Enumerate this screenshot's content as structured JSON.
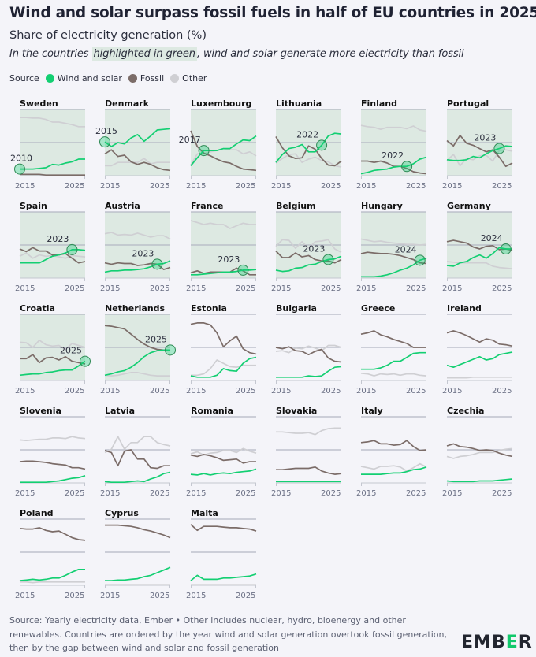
{
  "header": {
    "title": "Wind and solar surpass fossil fuels in half of EU countries in 2025",
    "subtitle": "Share of electricity generation (%)",
    "desc_before": "In the countries ",
    "desc_highlight": "highlighted in green",
    "desc_after": ", wind and solar generate more electricity than fossil"
  },
  "legend": {
    "label": "Source",
    "items": [
      {
        "name": "Wind and solar",
        "color": "#13cf72"
      },
      {
        "name": "Fossil",
        "color": "#7b6c68"
      },
      {
        "name": "Other",
        "color": "#cfcfd3"
      }
    ]
  },
  "footer": {
    "source": "Source: Yearly electricity data, Ember • Other includes nuclear, hydro, bioenergy and other renewables. Countries are ordered by the year wind and solar generation overtook fossil generation, then by the gap between wind and solar and fossil generation",
    "logo": "EMBER"
  },
  "chart_data": {
    "type": "line",
    "title": "Wind and solar surpass fossil fuels in half of EU countries in 2025",
    "ylabel": "Share of electricity generation (%)",
    "x": [
      2015,
      2016,
      2017,
      2018,
      2019,
      2020,
      2021,
      2022,
      2023,
      2024,
      2025
    ],
    "xticks": [
      "2015",
      "2025"
    ],
    "ylim": [
      0,
      100
    ],
    "gridlines": [
      50,
      100
    ],
    "colors": {
      "wind_solar": "#13cf72",
      "fossil": "#7b6c68",
      "other": "#cfcfd3",
      "highlight": "#dde9e2",
      "marker": "#2f8a55"
    },
    "panels": [
      {
        "country": "Sweden",
        "highlighted": true,
        "crossover": "2010",
        "wind_solar": [
          10,
          10,
          10,
          11,
          12,
          17,
          16,
          19,
          21,
          25,
          25
        ],
        "fossil": [
          2,
          2,
          2,
          2,
          1,
          1,
          1,
          1,
          1,
          1,
          1
        ],
        "other": [
          88,
          88,
          87,
          87,
          85,
          81,
          81,
          79,
          77,
          74,
          74
        ]
      },
      {
        "country": "Denmark",
        "highlighted": true,
        "crossover": "2015",
        "wind_solar": [
          51,
          44,
          50,
          48,
          57,
          62,
          52,
          60,
          69,
          70,
          71
        ],
        "fossil": [
          33,
          39,
          29,
          31,
          21,
          17,
          20,
          17,
          12,
          9,
          8
        ],
        "other": [
          15,
          15,
          20,
          20,
          20,
          20,
          26,
          18,
          20,
          20,
          20
        ]
      },
      {
        "country": "Luxembourg",
        "highlighted": true,
        "crossover": "2017",
        "wind_solar": [
          15,
          27,
          38,
          38,
          38,
          41,
          41,
          48,
          54,
          53,
          60
        ],
        "fossil": [
          68,
          44,
          34,
          30,
          25,
          21,
          19,
          14,
          10,
          9,
          8
        ],
        "other": [
          16,
          33,
          33,
          36,
          38,
          41,
          39,
          39,
          33,
          36,
          30
        ]
      },
      {
        "country": "Lithuania",
        "highlighted": true,
        "crossover": "2022",
        "wind_solar": [
          20,
          32,
          41,
          43,
          47,
          36,
          36,
          46,
          60,
          64,
          63
        ],
        "fossil": [
          59,
          42,
          30,
          26,
          27,
          45,
          40,
          26,
          16,
          15,
          22
        ],
        "other": [
          19,
          26,
          32,
          33,
          20,
          25,
          28,
          23,
          21,
          15,
          13
        ]
      },
      {
        "country": "Finland",
        "highlighted": true,
        "crossover": "2022",
        "wind_solar": [
          3,
          5,
          8,
          9,
          10,
          13,
          14,
          14,
          18,
          25,
          28
        ],
        "fossil": [
          22,
          22,
          20,
          22,
          19,
          14,
          14,
          11,
          6,
          4,
          3
        ],
        "other": [
          76,
          74,
          73,
          70,
          73,
          73,
          73,
          71,
          75,
          69,
          67
        ]
      },
      {
        "country": "Portugal",
        "highlighted": true,
        "crossover": "2023",
        "wind_solar": [
          24,
          23,
          23,
          24,
          29,
          27,
          33,
          38,
          41,
          45,
          44
        ],
        "fossil": [
          53,
          45,
          61,
          49,
          46,
          41,
          36,
          39,
          28,
          14,
          19
        ],
        "other": [
          23,
          32,
          15,
          26,
          24,
          30,
          31,
          22,
          38,
          39,
          37
        ]
      },
      {
        "country": "Spain",
        "highlighted": true,
        "crossover": "2023",
        "wind_solar": [
          23,
          23,
          23,
          23,
          28,
          33,
          35,
          38,
          43,
          43,
          42
        ],
        "fossil": [
          44,
          40,
          46,
          41,
          41,
          35,
          35,
          37,
          30,
          23,
          25
        ],
        "other": [
          33,
          38,
          30,
          35,
          33,
          34,
          32,
          30,
          34,
          33,
          32
        ]
      },
      {
        "country": "Austria",
        "highlighted": true,
        "crossover": "2023",
        "wind_solar": [
          9,
          11,
          11,
          12,
          12,
          13,
          14,
          17,
          21,
          22,
          26
        ],
        "fossil": [
          23,
          21,
          23,
          22,
          22,
          19,
          20,
          22,
          21,
          13,
          16
        ],
        "other": [
          67,
          69,
          65,
          66,
          65,
          68,
          65,
          62,
          64,
          64,
          59
        ]
      },
      {
        "country": "France",
        "highlighted": true,
        "crossover": "2023",
        "wind_solar": [
          5,
          5,
          6,
          7,
          8,
          9,
          9,
          10,
          12,
          12,
          13
        ],
        "fossil": [
          8,
          11,
          7,
          9,
          9,
          9,
          9,
          15,
          11,
          5,
          5
        ],
        "other": [
          87,
          84,
          81,
          83,
          81,
          81,
          75,
          79,
          83,
          81,
          81
        ]
      },
      {
        "country": "Belgium",
        "highlighted": true,
        "crossover": "2023",
        "wind_solar": [
          12,
          10,
          11,
          15,
          16,
          20,
          21,
          25,
          28,
          29,
          33
        ],
        "fossil": [
          41,
          31,
          31,
          38,
          32,
          34,
          28,
          26,
          26,
          23,
          28
        ],
        "other": [
          48,
          58,
          57,
          45,
          55,
          45,
          55,
          56,
          58,
          44,
          39
        ]
      },
      {
        "country": "Hungary",
        "highlighted": true,
        "crossover": "2024",
        "wind_solar": [
          2,
          2,
          2,
          3,
          5,
          8,
          12,
          15,
          20,
          27,
          30
        ],
        "fossil": [
          37,
          39,
          38,
          37,
          37,
          36,
          34,
          31,
          28,
          23,
          22
        ],
        "other": [
          59,
          57,
          55,
          56,
          54,
          53,
          52,
          51,
          51,
          50,
          51
        ]
      },
      {
        "country": "Germany",
        "highlighted": true,
        "crossover": "2024",
        "wind_solar": [
          19,
          18,
          23,
          25,
          31,
          35,
          30,
          37,
          46,
          44,
          44
        ],
        "fossil": [
          55,
          57,
          55,
          53,
          47,
          44,
          48,
          49,
          43,
          44,
          42
        ],
        "other": [
          25,
          24,
          23,
          23,
          23,
          23,
          23,
          18,
          16,
          15,
          14
        ]
      },
      {
        "country": "Croatia",
        "highlighted": true,
        "crossover": "2025",
        "wind_solar": [
          8,
          9,
          10,
          10,
          12,
          13,
          15,
          16,
          16,
          22,
          29
        ],
        "fossil": [
          33,
          33,
          39,
          27,
          34,
          35,
          31,
          36,
          29,
          27,
          25
        ],
        "other": [
          58,
          57,
          50,
          61,
          54,
          52,
          53,
          47,
          56,
          53,
          50
        ]
      },
      {
        "country": "Netherlands",
        "highlighted": true,
        "crossover": "2025",
        "wind_solar": [
          8,
          10,
          13,
          15,
          20,
          27,
          36,
          42,
          45,
          46,
          46
        ],
        "fossil": [
          83,
          82,
          80,
          78,
          70,
          62,
          55,
          50,
          47,
          46,
          45
        ],
        "other": [
          8,
          7,
          8,
          10,
          12,
          12,
          10,
          8,
          7,
          7,
          7
        ]
      },
      {
        "country": "Estonia",
        "highlighted": false,
        "wind_solar": [
          7,
          5,
          5,
          5,
          8,
          18,
          15,
          14,
          26,
          33,
          35
        ],
        "fossil": [
          85,
          87,
          87,
          84,
          72,
          51,
          60,
          67,
          48,
          42,
          40
        ],
        "other": [
          8,
          8,
          10,
          18,
          31,
          26,
          21,
          20,
          23,
          23,
          23
        ]
      },
      {
        "country": "Bulgaria",
        "highlighted": false,
        "wind_solar": [
          5,
          5,
          5,
          5,
          5,
          7,
          6,
          7,
          14,
          20,
          21
        ],
        "fossil": [
          50,
          48,
          51,
          45,
          44,
          39,
          44,
          47,
          34,
          29,
          28
        ],
        "other": [
          44,
          45,
          42,
          49,
          48,
          52,
          49,
          45,
          53,
          53,
          50
        ]
      },
      {
        "country": "Greece",
        "highlighted": false,
        "wind_solar": [
          17,
          17,
          17,
          19,
          23,
          29,
          29,
          35,
          41,
          42,
          42
        ],
        "fossil": [
          70,
          72,
          75,
          69,
          66,
          62,
          59,
          56,
          50,
          50,
          50
        ],
        "other": [
          11,
          10,
          7,
          10,
          9,
          10,
          8,
          10,
          10,
          8,
          7
        ]
      },
      {
        "country": "Ireland",
        "highlighted": false,
        "wind_solar": [
          23,
          20,
          24,
          28,
          32,
          36,
          31,
          33,
          39,
          41,
          43
        ],
        "fossil": [
          72,
          75,
          72,
          68,
          63,
          58,
          63,
          61,
          55,
          54,
          52
        ],
        "other": [
          4,
          4,
          4,
          4,
          5,
          5,
          5,
          5,
          5,
          5,
          5
        ]
      },
      {
        "country": "Slovenia",
        "highlighted": false,
        "wind_solar": [
          1,
          1,
          1,
          1,
          1,
          2,
          3,
          5,
          7,
          8,
          11
        ],
        "fossil": [
          32,
          33,
          33,
          32,
          31,
          29,
          28,
          27,
          23,
          23,
          21
        ],
        "other": [
          65,
          64,
          65,
          66,
          66,
          68,
          68,
          67,
          70,
          68,
          67
        ]
      },
      {
        "country": "Latvia",
        "highlighted": false,
        "wind_solar": [
          2,
          1,
          1,
          1,
          2,
          3,
          2,
          6,
          9,
          14,
          16
        ],
        "fossil": [
          49,
          46,
          26,
          48,
          50,
          36,
          36,
          23,
          22,
          26,
          26
        ],
        "other": [
          46,
          51,
          70,
          51,
          61,
          61,
          70,
          70,
          61,
          58,
          56
        ]
      },
      {
        "country": "Romania",
        "highlighted": false,
        "wind_solar": [
          13,
          12,
          14,
          12,
          14,
          15,
          14,
          16,
          17,
          18,
          21
        ],
        "fossil": [
          42,
          40,
          43,
          41,
          38,
          34,
          35,
          36,
          30,
          32,
          32
        ],
        "other": [
          44,
          47,
          42,
          45,
          46,
          49,
          49,
          46,
          52,
          48,
          45
        ]
      },
      {
        "country": "Slovakia",
        "highlighted": false,
        "wind_solar": [
          2,
          2,
          2,
          2,
          2,
          2,
          2,
          2,
          2,
          2,
          2
        ],
        "fossil": [
          20,
          20,
          21,
          22,
          22,
          22,
          24,
          18,
          15,
          13,
          14
        ],
        "other": [
          77,
          77,
          76,
          75,
          75,
          76,
          73,
          79,
          82,
          83,
          83
        ]
      },
      {
        "country": "Italy",
        "highlighted": false,
        "wind_solar": [
          13,
          13,
          13,
          13,
          14,
          15,
          15,
          17,
          20,
          21,
          24
        ],
        "fossil": [
          61,
          62,
          64,
          59,
          59,
          57,
          58,
          64,
          55,
          49,
          50
        ],
        "other": [
          25,
          23,
          21,
          25,
          25,
          26,
          24,
          18,
          23,
          29,
          24
        ]
      },
      {
        "country": "Czechia",
        "highlighted": false,
        "wind_solar": [
          3,
          2,
          2,
          2,
          2,
          3,
          3,
          3,
          4,
          5,
          6
        ],
        "fossil": [
          56,
          59,
          55,
          54,
          52,
          49,
          50,
          49,
          45,
          42,
          40
        ],
        "other": [
          40,
          37,
          40,
          41,
          43,
          46,
          46,
          46,
          49,
          51,
          52
        ]
      },
      {
        "country": "Poland",
        "highlighted": false,
        "wind_solar": [
          7,
          8,
          9,
          8,
          9,
          11,
          11,
          15,
          20,
          24,
          24
        ],
        "fossil": [
          86,
          85,
          85,
          87,
          83,
          81,
          82,
          77,
          72,
          69,
          68
        ],
        "other": [
          5,
          5,
          4,
          5,
          5,
          5,
          5,
          5,
          5,
          5,
          5
        ]
      },
      {
        "country": "Cyprus",
        "highlighted": false,
        "wind_solar": [
          7,
          7,
          8,
          8,
          9,
          10,
          13,
          15,
          19,
          23,
          27
        ],
        "fossil": [
          91,
          91,
          91,
          90,
          89,
          87,
          84,
          82,
          79,
          76,
          72
        ],
        "other": [
          1,
          1,
          1,
          1,
          1,
          1,
          1,
          1,
          1,
          1,
          1
        ]
      },
      {
        "country": "Malta",
        "highlighted": false,
        "wind_solar": [
          7,
          15,
          9,
          9,
          9,
          11,
          11,
          12,
          13,
          14,
          17
        ],
        "fossil": [
          92,
          83,
          89,
          89,
          89,
          88,
          87,
          87,
          86,
          85,
          82
        ],
        "other": [
          1,
          1,
          1,
          1,
          1,
          1,
          1,
          1,
          1,
          1,
          1
        ]
      }
    ]
  }
}
